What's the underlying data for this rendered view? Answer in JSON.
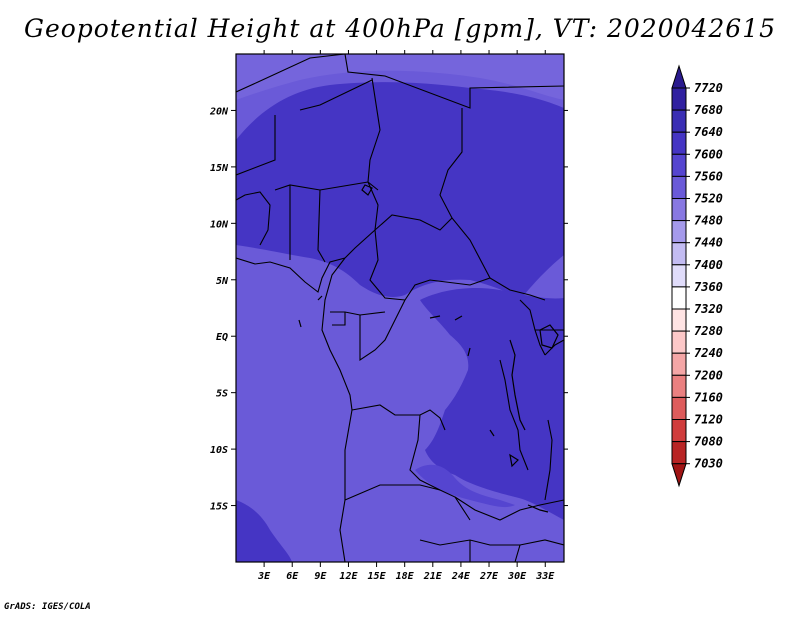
{
  "title": "Geopotential Height at 400hPa [gpm], VT: 2020042615",
  "credit": "GrADS: IGES/COLA",
  "map": {
    "lon_range": [
      0,
      35
    ],
    "lat_range": [
      -20,
      25
    ],
    "lon_ticks": [
      "3E",
      "6E",
      "9E",
      "12E",
      "15E",
      "18E",
      "21E",
      "24E",
      "27E",
      "30E",
      "33E"
    ],
    "lat_ticks": [
      "20N",
      "15N",
      "10N",
      "5N",
      "EQ",
      "5S",
      "10S",
      "15S"
    ]
  },
  "colorbar": {
    "labels": [
      "7720",
      "7680",
      "7640",
      "7600",
      "7560",
      "7520",
      "7480",
      "7440",
      "7400",
      "7360",
      "7320",
      "7280",
      "7240",
      "7200",
      "7160",
      "7120",
      "7080",
      "7030"
    ],
    "colors": [
      "#2a1a8e",
      "#3020a0",
      "#3a2eb4",
      "#4535c4",
      "#5545d0",
      "#6a5ad8",
      "#8878e2",
      "#a59aeb",
      "#c3bcf2",
      "#e0dcfa",
      "#ffffff",
      "#ffe4e4",
      "#fcc8c8",
      "#f4a6a6",
      "#ea8080",
      "#de5c5c",
      "#cf3c3c",
      "#b82424",
      "#a01414"
    ]
  }
}
